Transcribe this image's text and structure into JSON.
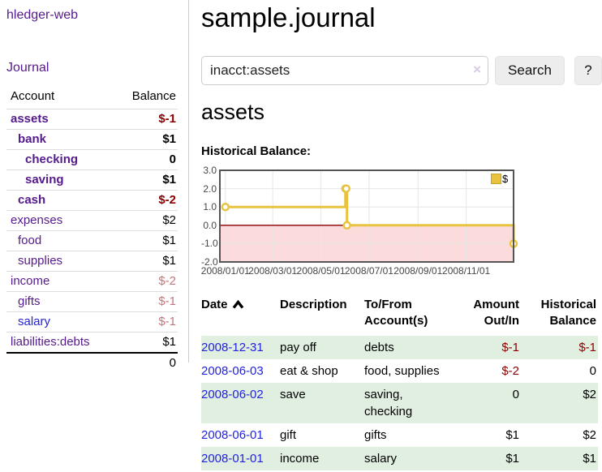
{
  "app": {
    "brand": "hledger-web"
  },
  "sidebar": {
    "nav": [
      {
        "label": "Journal"
      }
    ],
    "accounts_table": {
      "headers": {
        "account": "Account",
        "balance": "Balance"
      },
      "rows": [
        {
          "account": "assets",
          "balance": "$-1",
          "indent": 1,
          "bold": true,
          "link_color": "purple"
        },
        {
          "account": "bank",
          "balance": "$1",
          "indent": 2,
          "bold": true,
          "link_color": "purple"
        },
        {
          "account": "checking",
          "balance": "0",
          "indent": 3,
          "bold": true,
          "link_color": "purple"
        },
        {
          "account": "saving",
          "balance": "$1",
          "indent": 3,
          "bold": true,
          "link_color": "purple"
        },
        {
          "account": "cash",
          "balance": "$-2",
          "indent": 2,
          "bold": true,
          "link_color": "purple"
        },
        {
          "account": "expenses",
          "balance": "$2",
          "indent": 1,
          "bold": false,
          "link_color": "purple"
        },
        {
          "account": "food",
          "balance": "$1",
          "indent": 2,
          "bold": false,
          "link_color": "purple"
        },
        {
          "account": "supplies",
          "balance": "$1",
          "indent": 2,
          "bold": false,
          "link_color": "purple"
        },
        {
          "account": "income",
          "balance": "$-2",
          "indent": 1,
          "bold": false,
          "link_color": "purple"
        },
        {
          "account": "gifts",
          "balance": "$-1",
          "indent": 2,
          "bold": false,
          "link_color": "purple"
        },
        {
          "account": "salary",
          "balance": "$-1",
          "indent": 2,
          "bold": false,
          "link_color": "blue"
        },
        {
          "account": "liabilities:debts",
          "balance": "$1",
          "indent": 1,
          "bold": false,
          "link_color": "purple"
        }
      ],
      "total": "0"
    }
  },
  "main": {
    "title": "sample.journal",
    "search": {
      "value": "inacct:assets",
      "clear_icon": "×",
      "button_label": "Search",
      "help_label": "?"
    },
    "account_heading": "assets",
    "chart_heading": "Historical Balance:"
  },
  "chart_data": {
    "type": "line",
    "step": true,
    "title": "Historical Balance:",
    "series": [
      {
        "name": "$",
        "color": "#e9c340",
        "points": [
          [
            "2008-01-01",
            1
          ],
          [
            "2008-06-01",
            2
          ],
          [
            "2008-06-02",
            2
          ],
          [
            "2008-06-03",
            0
          ],
          [
            "2008-12-31",
            -1
          ]
        ]
      }
    ],
    "ylim": [
      -2,
      3
    ],
    "y_ticks": [
      "3.0",
      "2.0",
      "1.0",
      "0.0",
      "-1.0",
      "-2.0"
    ],
    "x_ticks": [
      "2008/01/01",
      "2008/03/01",
      "2008/05/01",
      "2008/07/01",
      "2008/09/01",
      "2008/11/01"
    ],
    "x_domain": [
      "2007-12-25",
      "2008-12-31"
    ],
    "legend_position": "top-right",
    "grid": true,
    "colors": {
      "line": "#e9c340",
      "marker_fill": "#ffffff",
      "border": "#545454",
      "gridline": "#e6e6e6",
      "zero_line": "#8b0000",
      "negative_region": "#fbdbdb"
    }
  },
  "register_table": {
    "headers": {
      "date": "Date",
      "description": "Description",
      "accounts": "To/From Account(s)",
      "amount": "Amount Out/In",
      "balance": "Historical Balance"
    },
    "rows": [
      {
        "date": "2008-12-31",
        "description": "pay off",
        "accounts": "debts",
        "amount": "$-1",
        "balance": "$-1"
      },
      {
        "date": "2008-06-03",
        "description": "eat & shop",
        "accounts": "food, supplies",
        "amount": "$-2",
        "balance": "0"
      },
      {
        "date": "2008-06-02",
        "description": "save",
        "accounts": "saving, checking",
        "amount": "0",
        "balance": "$2"
      },
      {
        "date": "2008-06-01",
        "description": "gift",
        "accounts": "gifts",
        "amount": "$1",
        "balance": "$2"
      },
      {
        "date": "2008-01-01",
        "description": "income",
        "accounts": "salary",
        "amount": "$1",
        "balance": "$1"
      }
    ]
  },
  "colors": {
    "link_purple": "#551a8b",
    "link_blue": "#2222dd",
    "negative_strong": "#8b0000",
    "negative_muted": "#c1777a",
    "row_stripe_green": "#e1efe1",
    "divider": "#cccccc",
    "button_bg": "#ededed",
    "chart_line_gold": "#e9c340"
  }
}
